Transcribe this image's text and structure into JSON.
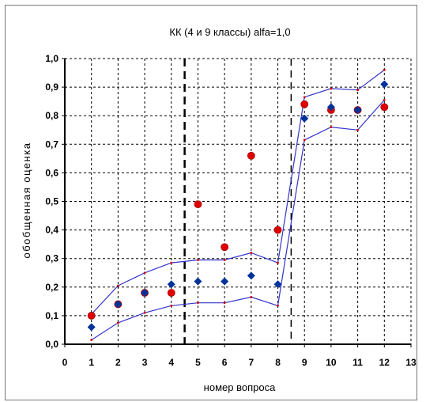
{
  "chart_data": {
    "type": "scatter",
    "title": "КК (4 и 9 классы) alfa=1,0",
    "xlabel": "номер вопроса",
    "ylabel": "обобщенная оценка",
    "xlim": [
      0,
      13
    ],
    "ylim": [
      0,
      1
    ],
    "x_ticks": [
      "0",
      "1",
      "2",
      "3",
      "4",
      "5",
      "6",
      "7",
      "8",
      "9",
      "10",
      "11",
      "12",
      "13"
    ],
    "y_ticks": [
      "0,0",
      "0,1",
      "0,2",
      "0,3",
      "0,4",
      "0,5",
      "0,6",
      "0,7",
      "0,8",
      "0,9",
      "1,0"
    ],
    "grid": true,
    "legend": "none",
    "vertical_lines": [
      4.5,
      8.5
    ],
    "x": [
      1,
      2,
      3,
      4,
      5,
      6,
      7,
      8,
      9,
      10,
      11,
      12
    ],
    "series": [
      {
        "type": "scatter",
        "marker": "circle",
        "color": "#e00000",
        "values": [
          0.1,
          0.14,
          0.18,
          0.18,
          0.49,
          0.34,
          0.66,
          0.4,
          0.84,
          0.82,
          0.82,
          0.83
        ]
      },
      {
        "type": "scatter",
        "marker": "diamond",
        "color": "#003399",
        "values": [
          0.06,
          0.14,
          0.18,
          0.21,
          0.22,
          0.22,
          0.24,
          0.21,
          0.79,
          0.83,
          0.82,
          0.91
        ]
      },
      {
        "type": "line",
        "color": "#3333cc",
        "values": [
          0.105,
          0.205,
          0.25,
          0.285,
          0.295,
          0.295,
          0.32,
          0.285,
          0.865,
          0.895,
          0.89,
          0.96
        ]
      },
      {
        "type": "line",
        "color": "#3333cc",
        "values": [
          0.015,
          0.075,
          0.11,
          0.135,
          0.145,
          0.145,
          0.165,
          0.135,
          0.715,
          0.76,
          0.75,
          0.855
        ]
      }
    ]
  }
}
